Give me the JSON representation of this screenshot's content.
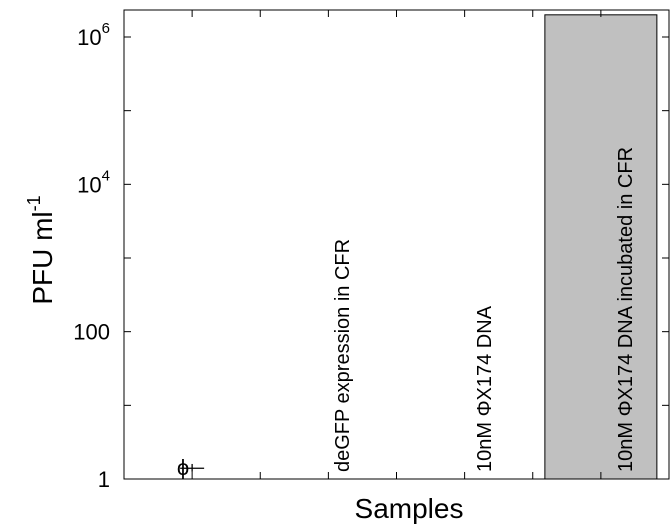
{
  "chart_data": {
    "type": "bar",
    "xlabel": "Samples",
    "ylabel": "PFU ml",
    "ylabel_superscript": "-1",
    "y_scale": "log",
    "ylim": [
      1,
      5000000
    ],
    "y_ticks": [
      {
        "value": 1,
        "label": "1",
        "base": "",
        "exp": ""
      },
      {
        "value": 100,
        "label": "100",
        "base": "",
        "exp": ""
      },
      {
        "value": 10000,
        "label": "",
        "base": "10",
        "exp": "4"
      },
      {
        "value": 1000000,
        "label": "",
        "base": "10",
        "exp": "6"
      }
    ],
    "y_minor_ticks": [
      10,
      1000,
      100000
    ],
    "categories": [
      "ϕ",
      "deGFP expression in CFR",
      "10nM ΦX174 DNA",
      "10nM ΦX174 DNA incubated in CFR"
    ],
    "values": [
      1.4,
      null,
      null,
      2000000
    ],
    "errors": [
      {
        "low": 1.25,
        "high": 1.6
      },
      null,
      null,
      null
    ],
    "bar_color": "#c0c0c0",
    "grid": false,
    "legend": "none"
  }
}
